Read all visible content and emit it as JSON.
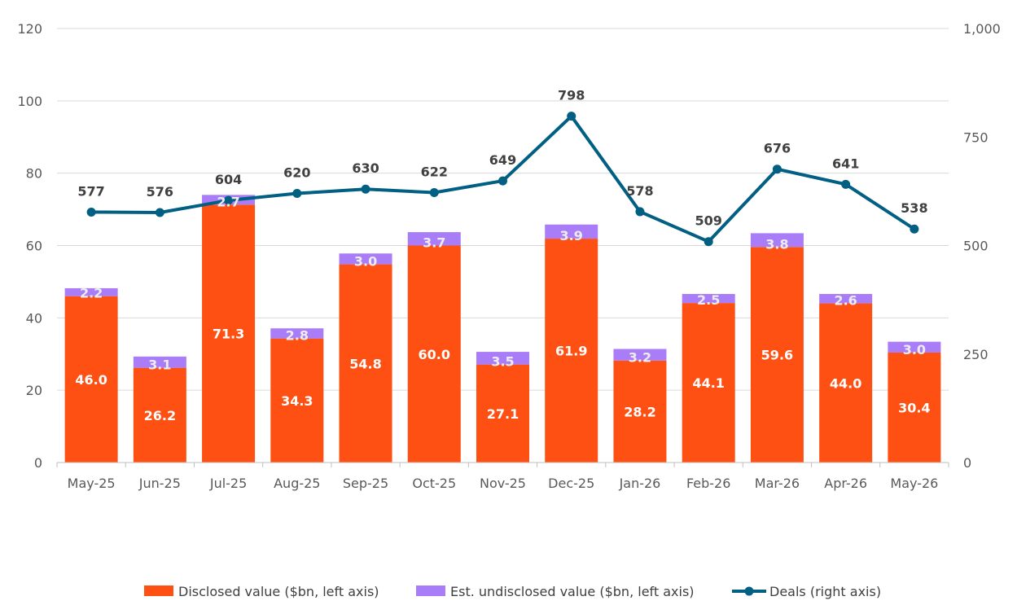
{
  "chart_data": {
    "type": "bar",
    "stacked": true,
    "categories": [
      "May-25",
      "Jun-25",
      "Jul-25",
      "Aug-25",
      "Sep-25",
      "Oct-25",
      "Nov-25",
      "Dec-25",
      "Jan-26",
      "Feb-26",
      "Mar-26",
      "Apr-26",
      "May-26"
    ],
    "series": [
      {
        "name": "Disclosed value ($bn, left axis)",
        "type": "bar",
        "axis": "left",
        "color": "#FF5014",
        "values": [
          46.0,
          26.2,
          71.3,
          34.3,
          54.8,
          60.0,
          27.1,
          61.9,
          28.2,
          44.1,
          59.6,
          44.0,
          30.4
        ],
        "labels": [
          "46.0",
          "26.2",
          "71.3",
          "34.3",
          "54.8",
          "60.0",
          "27.1",
          "61.9",
          "28.2",
          "44.1",
          "59.6",
          "44.0",
          "30.4"
        ]
      },
      {
        "name": "Est. undisclosed value ($bn, left axis)",
        "type": "bar",
        "axis": "left",
        "color": "#A97CF8",
        "values": [
          2.2,
          3.1,
          2.7,
          2.8,
          3.0,
          3.7,
          3.5,
          3.9,
          3.2,
          2.5,
          3.8,
          2.6,
          3.0
        ],
        "labels": [
          "2.2",
          "3.1",
          "2.7",
          "2.8",
          "3.0",
          "3.7",
          "3.5",
          "3.9",
          "3.2",
          "2.5",
          "3.8",
          "2.6",
          "3.0"
        ]
      },
      {
        "name": "Deals (right axis)",
        "type": "line",
        "axis": "right",
        "color": "#005F83",
        "values": [
          577,
          576,
          604,
          620,
          630,
          622,
          649,
          798,
          578,
          509,
          676,
          641,
          538
        ],
        "labels": [
          "577",
          "576",
          "604",
          "620",
          "630",
          "622",
          "649",
          "798",
          "578",
          "509",
          "676",
          "641",
          "538"
        ]
      }
    ],
    "y_left": {
      "min": 0,
      "max": 120,
      "ticks": [
        "0",
        "20",
        "40",
        "60",
        "80",
        "100",
        "120"
      ]
    },
    "y_right": {
      "min": 0,
      "max": 1000,
      "ticks": [
        "0",
        "250",
        "500",
        "750",
        "1,000"
      ]
    },
    "grid": true,
    "legend": "bottom"
  }
}
